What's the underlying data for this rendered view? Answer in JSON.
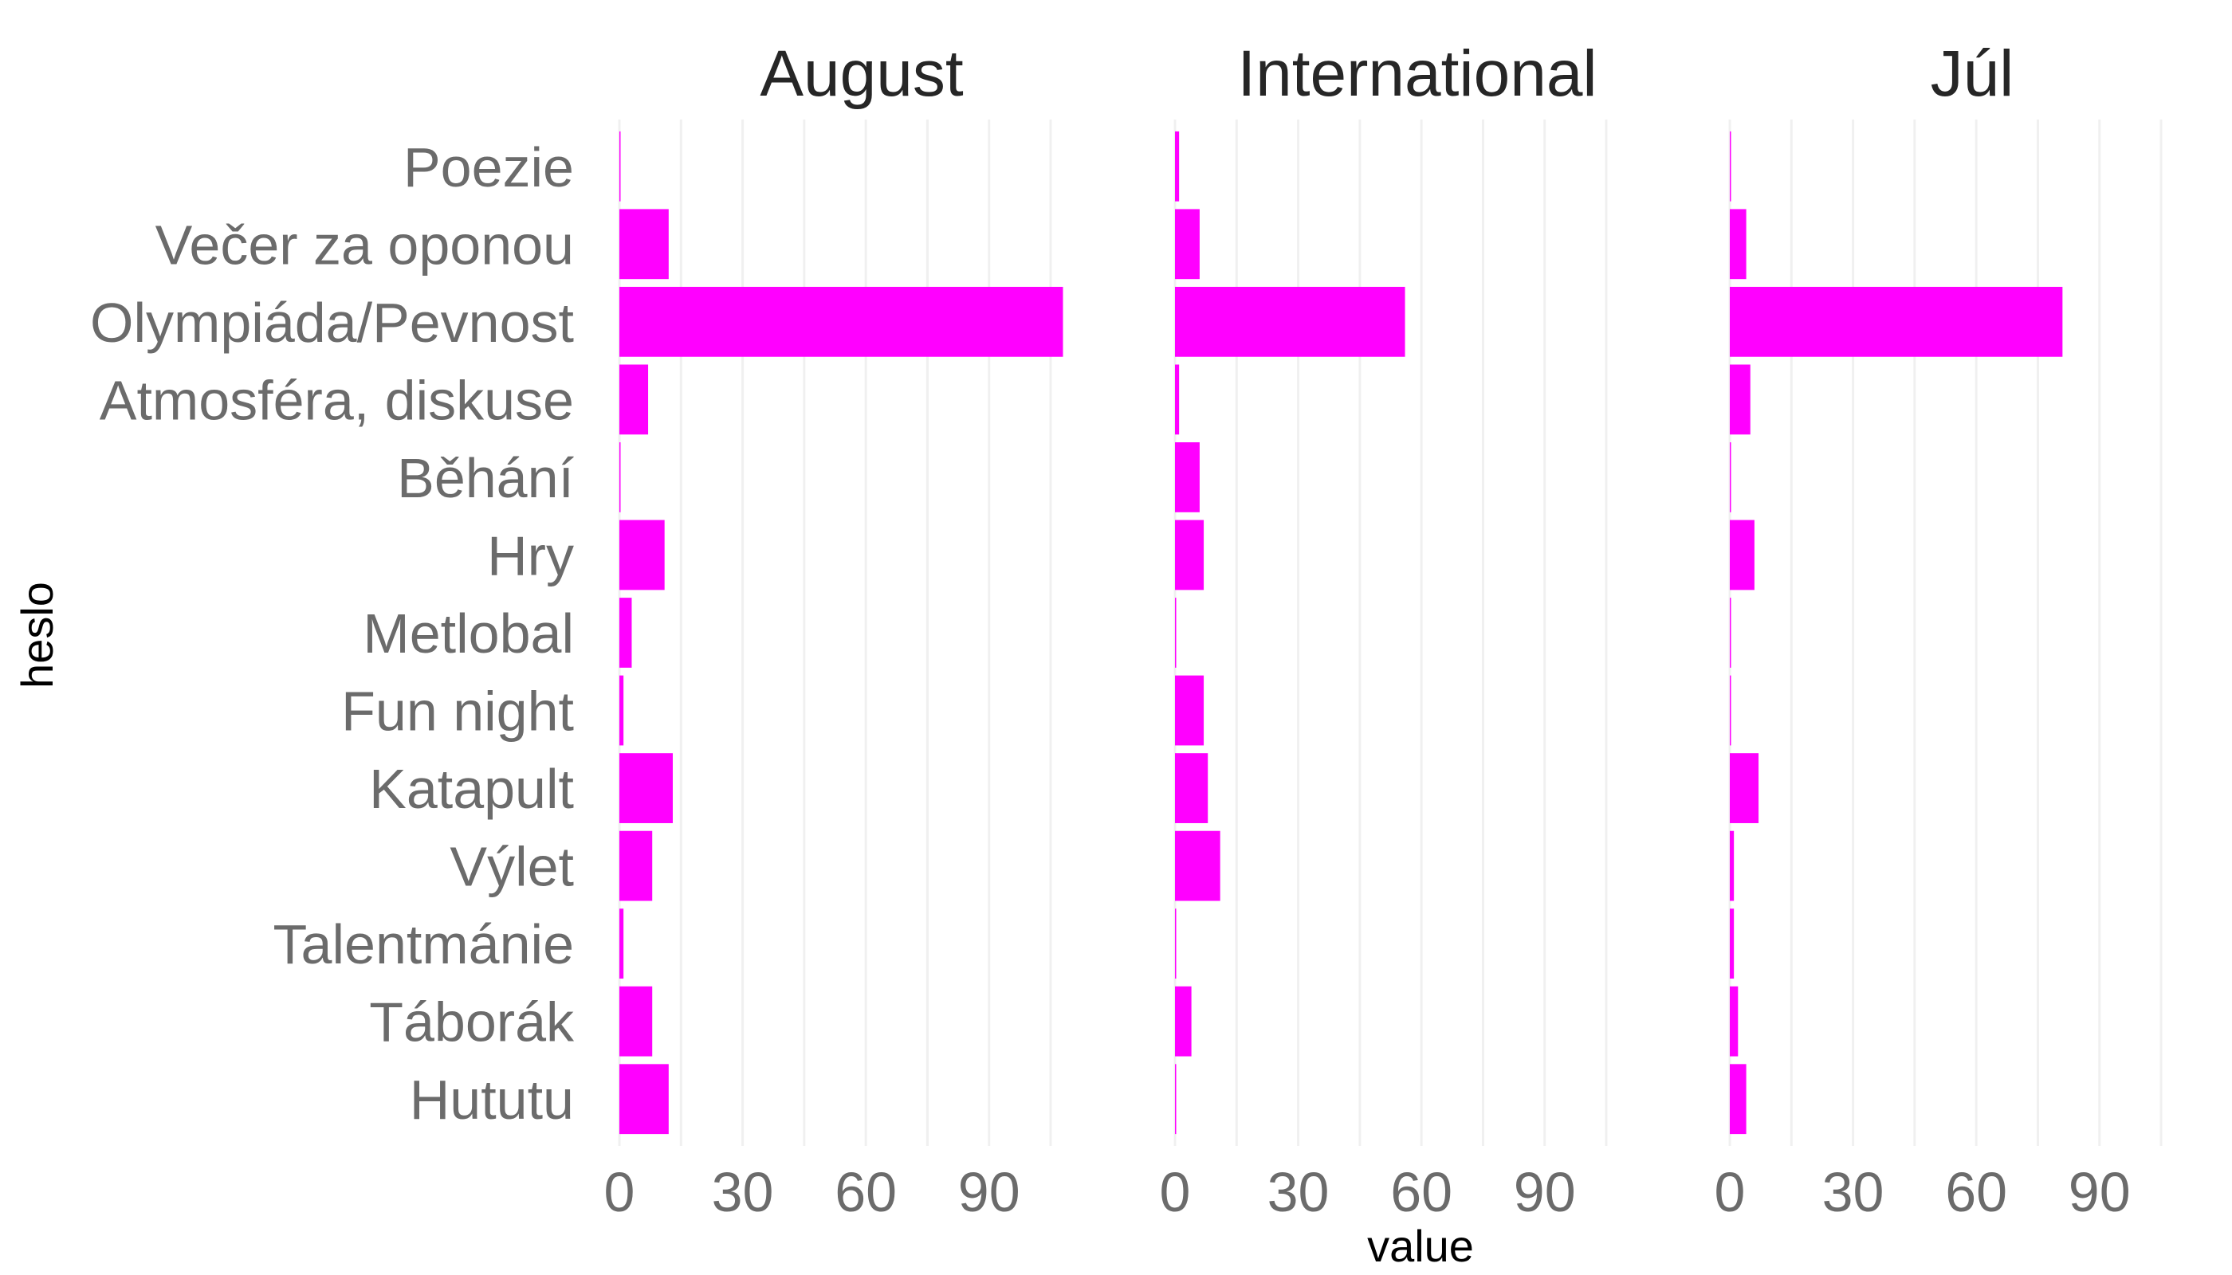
{
  "chart_data": {
    "type": "bar",
    "orientation": "horizontal",
    "xlabel": "value",
    "ylabel": "heslo",
    "xlim": [
      0,
      108
    ],
    "x_ticks": [
      0,
      30,
      60,
      90
    ],
    "x_tick_labels": [
      "0",
      "30",
      "60",
      "90"
    ],
    "grid": true,
    "legend": "none",
    "bar_color": "#ff00ff",
    "grid_color": "#f0f0f0",
    "categories": [
      "Poezie",
      "Večer za oponou",
      "Olympiáda/Pevnost",
      "Atmosféra, diskuse",
      "Běhání",
      "Hry",
      "Metlobal",
      "Fun night",
      "Katapult",
      "Výlet",
      "Talentmánie",
      "Táborák",
      "Hututu"
    ],
    "facets": [
      {
        "title": "August",
        "values": [
          0,
          12,
          108,
          7,
          0,
          11,
          3,
          1,
          13,
          8,
          1,
          8,
          12
        ]
      },
      {
        "title": "International",
        "values": [
          1,
          6,
          56,
          1,
          6,
          7,
          0,
          7,
          8,
          11,
          0,
          4,
          0
        ]
      },
      {
        "title": "Júl",
        "values": [
          0,
          4,
          81,
          5,
          0,
          6,
          0,
          0,
          7,
          1,
          1,
          2,
          4
        ]
      }
    ]
  }
}
